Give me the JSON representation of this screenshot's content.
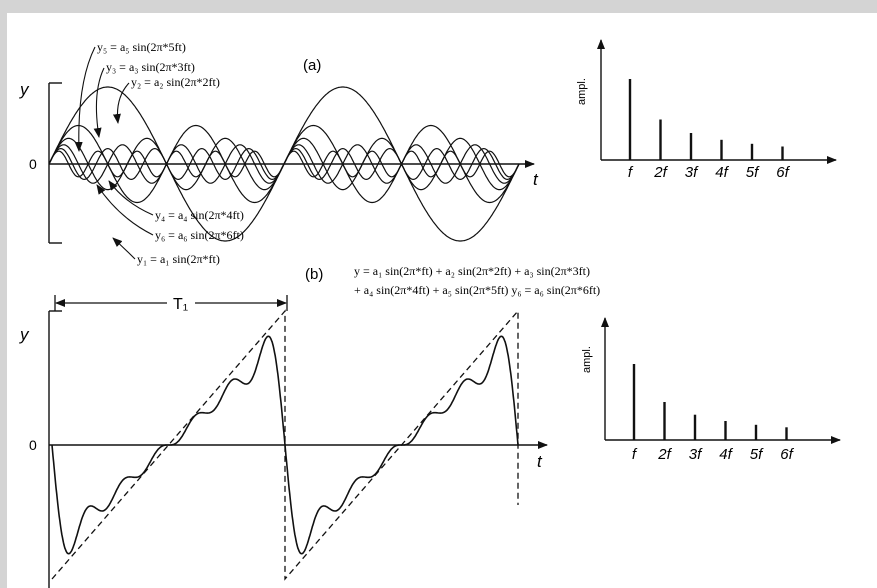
{
  "panel_a": {
    "label": "(a)",
    "y_axis": "y",
    "t_axis": "t",
    "zero": "0",
    "eq_y5": "y₅ = a₅ sin(2π*5ft)",
    "eq_y3": "y₃ = a₃ sin(2π*3ft)",
    "eq_y2": "y₂ = a₂ sin(2π*2ft)",
    "eq_y4": "y₄ = a₄ sin(2π*4ft)",
    "eq_y6": "y₆ = a₆ sin(2π*6ft)",
    "eq_y1": "y₁ = a₁ sin(2π*ft)"
  },
  "panel_b": {
    "label": "(b)",
    "y_axis": "y",
    "t_axis": "t",
    "zero": "0",
    "period_label": "T₁",
    "sum_line1": "y = a₁ sin(2π*ft) + a₂ sin(2π*2ft) + a₃ sin(2π*3ft)",
    "sum_line2": "+ a₄ sin(2π*4ft) + a₅ sin(2π*5ft)  y₆ = a₆ sin(2π*6ft)"
  },
  "spectrum_a": {
    "y_label": "ampl.",
    "x_labels": [
      "f",
      "2f",
      "3f",
      "4f",
      "5f",
      "6f"
    ],
    "amplitudes": [
      1,
      0.5,
      0.333,
      0.25,
      0.2,
      0.167
    ]
  },
  "spectrum_b": {
    "y_label": "ampl.",
    "x_labels": [
      "f",
      "2f",
      "3f",
      "4f",
      "5f",
      "6f"
    ],
    "amplitudes": [
      1,
      0.5,
      0.333,
      0.25,
      0.2,
      0.167
    ]
  }
}
